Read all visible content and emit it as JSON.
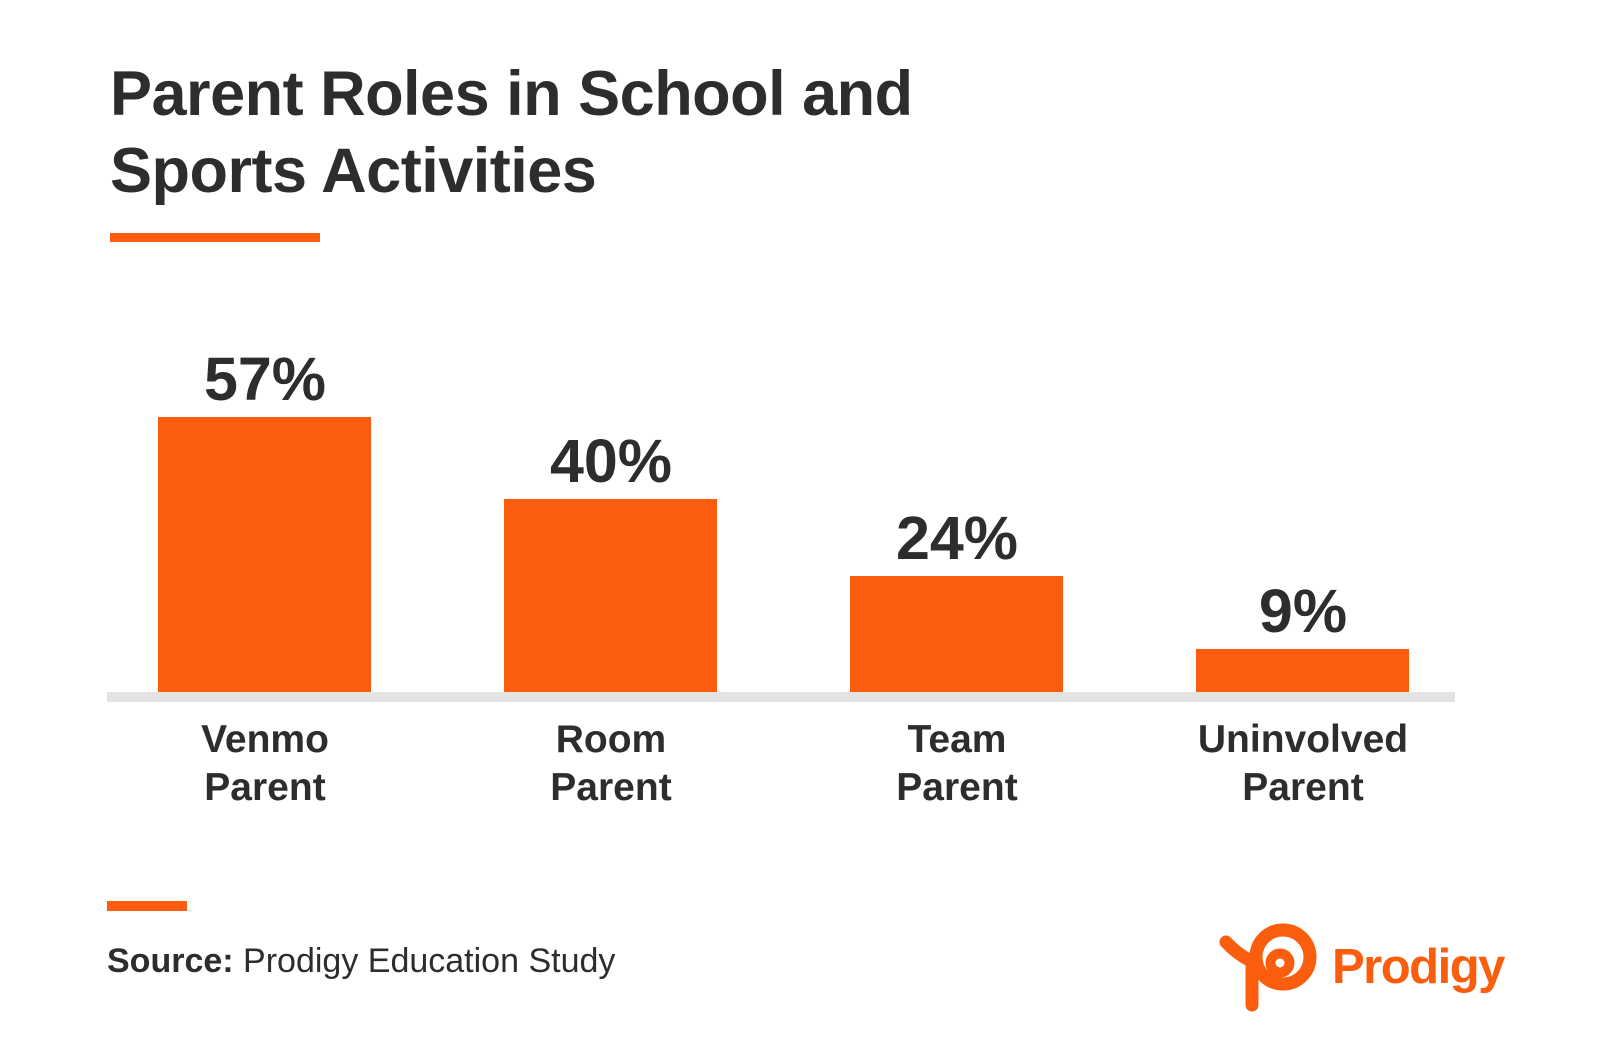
{
  "title": {
    "full": "Parent Roles in School and Sports Activities",
    "lines": [
      "Parent Roles in School and",
      "Sports Activities"
    ]
  },
  "chart_data": {
    "type": "bar",
    "title": "Parent Roles in School and Sports Activities",
    "categories": [
      "Venmo Parent",
      "Room Parent",
      "Team Parent",
      "Uninvolved Parent"
    ],
    "category_lines": [
      [
        "Venmo",
        "Parent"
      ],
      [
        "Room",
        "Parent"
      ],
      [
        "Team",
        "Parent"
      ],
      [
        "Uninvolved",
        "Parent"
      ]
    ],
    "values": [
      57,
      40,
      24,
      9
    ],
    "value_labels": [
      "57%",
      "40%",
      "24%",
      "9%"
    ],
    "unit": "%",
    "ylim": [
      0,
      60
    ],
    "grid": false,
    "legend": false,
    "bar_color": "#FB5D0F",
    "axis_line_color": "#E3E3E3",
    "value_label_color": "#2E2D2B"
  },
  "source": {
    "label": "Source:",
    "text": "Prodigy Education Study"
  },
  "logo": {
    "wordmark": "Prodigy",
    "icon": "prodigy-p-icon",
    "color": "#FB5D0F"
  },
  "colors": {
    "accent": "#FB5D0F",
    "text": "#2E2D2B",
    "background": "#FFFFFF",
    "axis": "#E3E3E3"
  }
}
